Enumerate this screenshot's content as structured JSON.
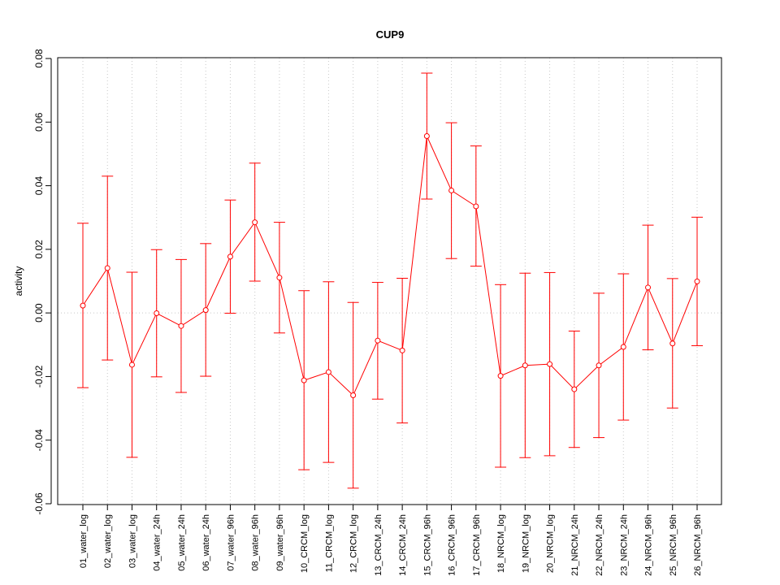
{
  "chart_data": {
    "type": "line",
    "title": "CUP9",
    "xlabel": "",
    "ylabel": "activity",
    "ylim": [
      -0.06,
      0.08
    ],
    "yticks": [
      "-0.06",
      "-0.04",
      "-0.02",
      "0.00",
      "0.02",
      "0.04",
      "0.06",
      "0.08"
    ],
    "categories": [
      "01_water_log",
      "02_water_log",
      "03_water_log",
      "04_water_24h",
      "05_water_24h",
      "06_water_24h",
      "07_water_96h",
      "08_water_96h",
      "09_water_96h",
      "10_CRCM_log",
      "11_CRCM_log",
      "12_CRCM_log",
      "13_CRCM_24h",
      "14_CRCM_24h",
      "15_CRCM_96h",
      "16_CRCM_96h",
      "17_CRCM_96h",
      "18_NRCM_log",
      "19_NRCM_log",
      "20_NRCM_log",
      "21_NRCM_24h",
      "22_NRCM_24h",
      "23_NRCM_24h",
      "24_NRCM_96h",
      "25_NRCM_96h",
      "26_NRCM_96h"
    ],
    "values": [
      0.0023,
      0.0141,
      -0.0163,
      -0.0001,
      -0.0041,
      0.0009,
      0.0177,
      0.0285,
      0.0111,
      -0.0212,
      -0.0186,
      -0.0259,
      -0.0087,
      -0.0118,
      0.0556,
      0.0385,
      0.0335,
      -0.0198,
      -0.0165,
      -0.0161,
      -0.024,
      -0.0165,
      -0.0107,
      0.008,
      -0.0096,
      0.0099
    ],
    "upper": [
      0.0282,
      0.043,
      0.0128,
      0.0199,
      0.0168,
      0.0218,
      0.0355,
      0.0471,
      0.0285,
      0.007,
      0.0098,
      0.0033,
      0.0096,
      0.0109,
      0.0754,
      0.0598,
      0.0525,
      0.0089,
      0.0125,
      0.0127,
      -0.0057,
      0.0062,
      0.0123,
      0.0276,
      0.0108,
      0.0301
    ],
    "lower": [
      -0.0235,
      -0.0148,
      -0.0454,
      -0.0201,
      -0.025,
      -0.0199,
      -0.0001,
      0.01,
      -0.0063,
      -0.0493,
      -0.047,
      -0.0551,
      -0.0271,
      -0.0346,
      0.0358,
      0.0171,
      0.0147,
      -0.0485,
      -0.0455,
      -0.0449,
      -0.0423,
      -0.0392,
      -0.0337,
      -0.0116,
      -0.0299,
      -0.0103
    ],
    "reference_line": 0,
    "grid": "vertical dotted at each category",
    "color": "#ff0000",
    "error_bars": true
  }
}
